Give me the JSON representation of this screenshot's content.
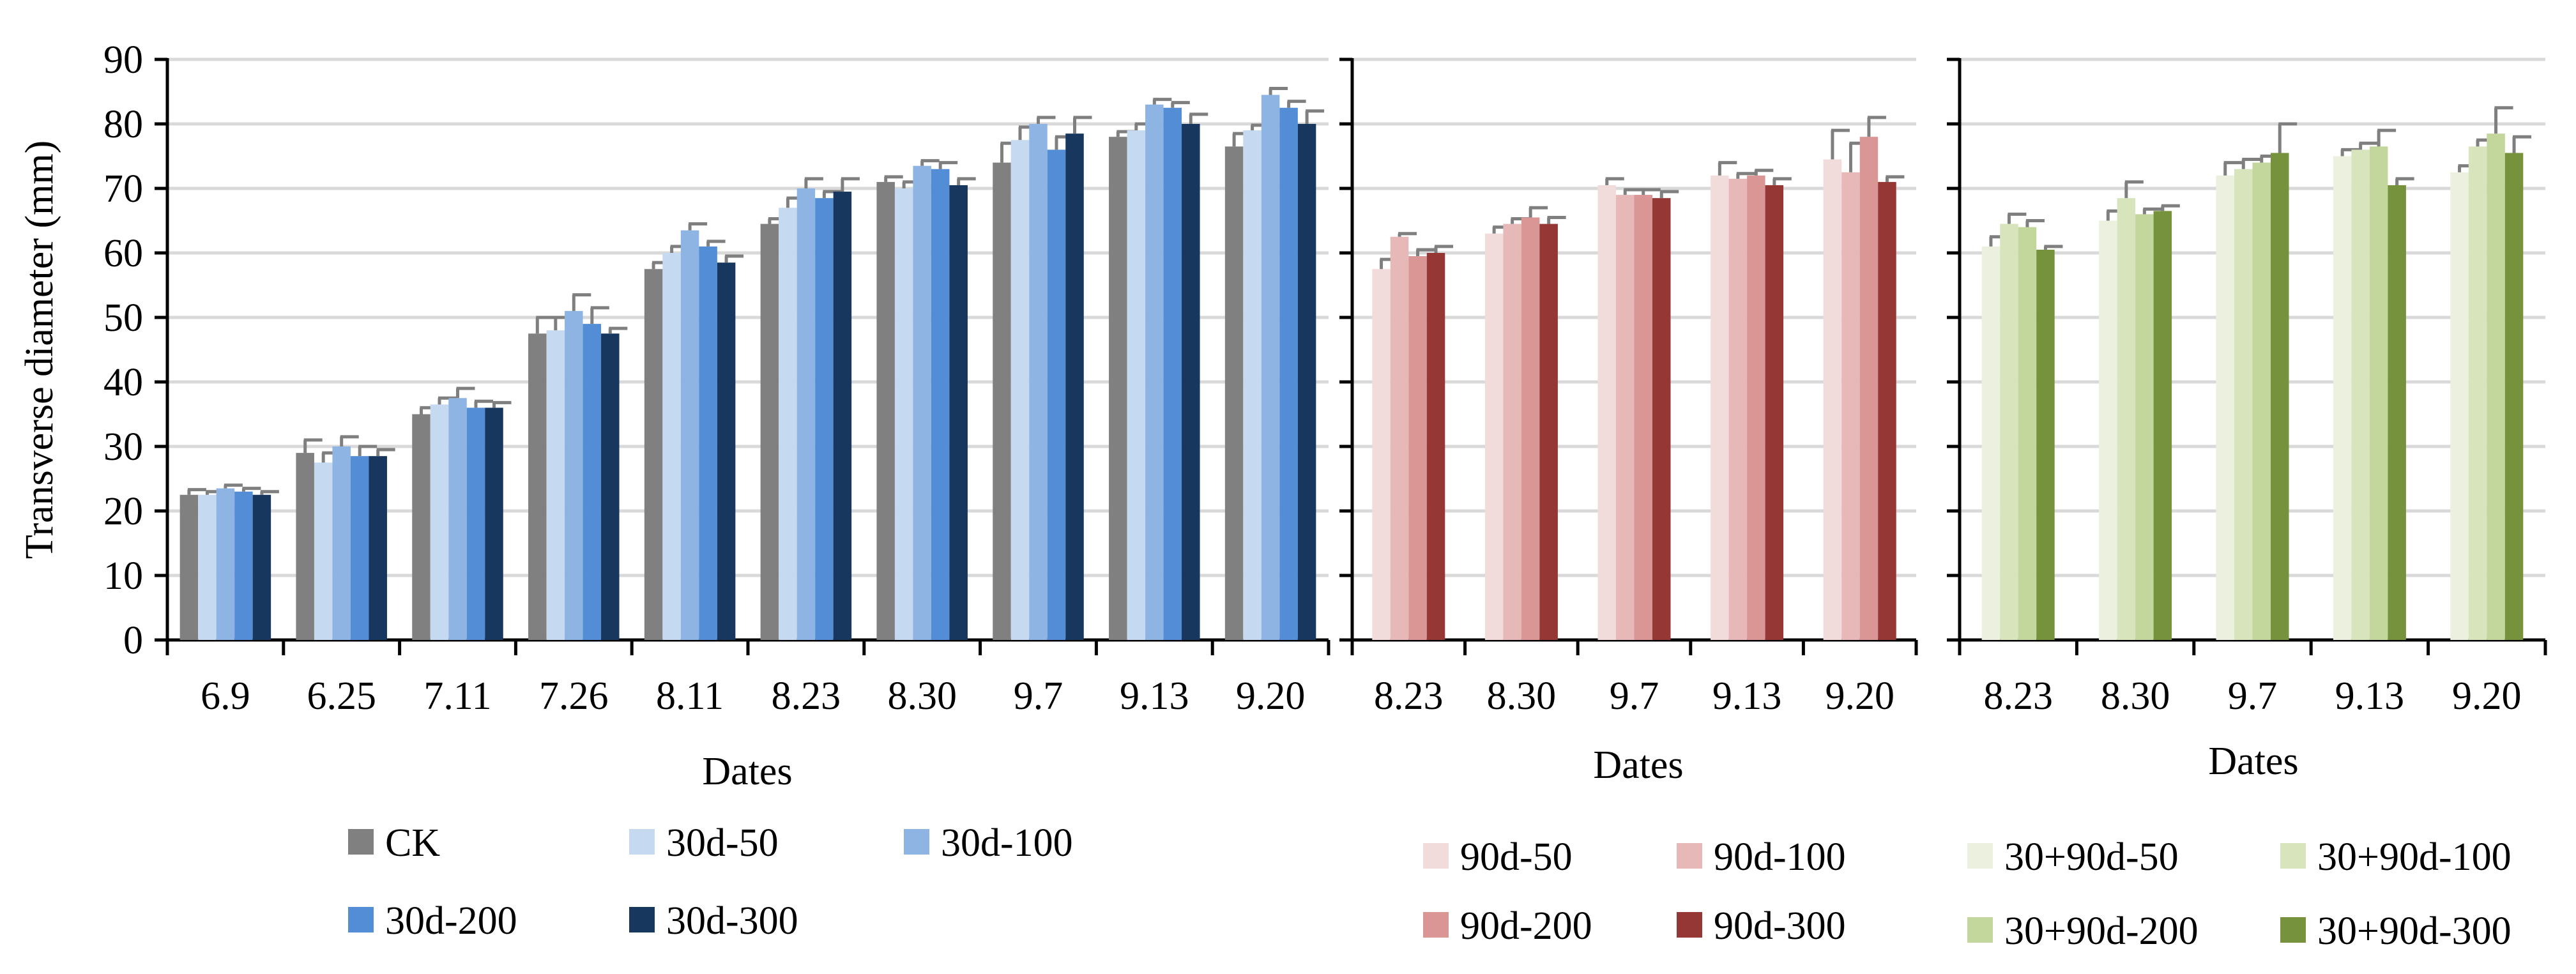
{
  "colors": {
    "grid": "#d9d9d9",
    "axis": "#000000",
    "errorbar": "#7f7f7f"
  },
  "chart_data": [
    {
      "type": "bar",
      "title": "",
      "xlabel": "Dates",
      "ylabel": "Transverse diameter (mm)",
      "ylim": [
        0,
        90
      ],
      "yticks": [
        0,
        10,
        20,
        30,
        40,
        50,
        60,
        70,
        80,
        90
      ],
      "grid": true,
      "legend_position": "bottom",
      "categories": [
        "6.9",
        "6.25",
        "7.11",
        "7.26",
        "8.11",
        "8.23",
        "8.30",
        "9.7",
        "9.13",
        "9.20"
      ],
      "series": [
        {
          "name": "CK",
          "color": "#808080",
          "values": [
            22.5,
            29.0,
            35.0,
            47.5,
            57.5,
            64.5,
            71.0,
            74.0,
            78.0,
            76.5
          ],
          "errors": [
            0.8,
            2.0,
            1.0,
            2.5,
            1.0,
            0.8,
            0.8,
            3.0,
            0.8,
            2.0
          ]
        },
        {
          "name": "30d-50",
          "color": "#c5d9f1",
          "values": [
            22.5,
            27.5,
            36.5,
            48.0,
            60.0,
            67.0,
            70.0,
            77.5,
            79.0,
            79.0
          ],
          "errors": [
            0.5,
            1.5,
            1.0,
            2.0,
            1.0,
            1.5,
            1.0,
            2.0,
            1.0,
            0.8
          ]
        },
        {
          "name": "30d-100",
          "color": "#8db4e2",
          "values": [
            23.5,
            30.0,
            37.5,
            51.0,
            63.5,
            70.0,
            73.5,
            80.0,
            83.0,
            84.5
          ],
          "errors": [
            0.5,
            1.5,
            1.5,
            2.5,
            1.0,
            1.5,
            0.8,
            1.0,
            0.8,
            1.0
          ]
        },
        {
          "name": "30d-200",
          "color": "#538dd5",
          "values": [
            23.0,
            28.5,
            36.0,
            49.0,
            61.0,
            68.5,
            73.0,
            76.0,
            82.5,
            82.5
          ],
          "errors": [
            0.5,
            1.5,
            1.0,
            2.5,
            0.8,
            1.0,
            1.0,
            2.0,
            0.8,
            1.0
          ]
        },
        {
          "name": "30d-300",
          "color": "#17375e",
          "values": [
            22.5,
            28.5,
            36.0,
            47.5,
            58.5,
            69.5,
            70.5,
            78.5,
            80.0,
            80.0
          ],
          "errors": [
            0.5,
            1.0,
            0.8,
            0.8,
            1.0,
            2.0,
            1.0,
            2.5,
            1.5,
            2.0
          ]
        }
      ]
    },
    {
      "type": "bar",
      "title": "",
      "xlabel": "Dates",
      "ylabel": "",
      "ylim": [
        0,
        90
      ],
      "grid": true,
      "legend_position": "bottom",
      "categories": [
        "8.23",
        "8.30",
        "9.7",
        "9.13",
        "9.20"
      ],
      "series": [
        {
          "name": "90d-50",
          "color": "#f2dcdb",
          "values": [
            57.5,
            63.0,
            70.5,
            72.0,
            74.5
          ],
          "errors": [
            1.5,
            1.0,
            1.0,
            2.0,
            4.5
          ]
        },
        {
          "name": "90d-100",
          "color": "#e6b9b8",
          "values": [
            62.5,
            64.5,
            69.0,
            71.5,
            72.5
          ],
          "errors": [
            0.5,
            0.8,
            0.8,
            0.8,
            4.5
          ]
        },
        {
          "name": "90d-200",
          "color": "#d99694",
          "values": [
            59.5,
            65.5,
            69.0,
            72.0,
            78.0
          ],
          "errors": [
            1.0,
            1.5,
            0.8,
            0.8,
            3.0
          ]
        },
        {
          "name": "90d-300",
          "color": "#953735",
          "values": [
            60.0,
            64.5,
            68.5,
            70.5,
            71.0
          ],
          "errors": [
            1.0,
            1.0,
            1.0,
            1.0,
            0.8
          ]
        }
      ]
    },
    {
      "type": "bar",
      "title": "",
      "xlabel": "Dates",
      "ylabel": "",
      "ylim": [
        0,
        90
      ],
      "grid": true,
      "legend_position": "bottom",
      "categories": [
        "8.23",
        "8.30",
        "9.7",
        "9.13",
        "9.20"
      ],
      "series": [
        {
          "name": "30+90d-50",
          "color": "#ebf1de",
          "values": [
            61.0,
            65.0,
            72.0,
            75.0,
            72.5
          ],
          "errors": [
            1.5,
            1.5,
            2.0,
            1.0,
            1.0
          ]
        },
        {
          "name": "30+90d-100",
          "color": "#d7e4bc",
          "values": [
            64.5,
            68.5,
            73.0,
            76.0,
            76.5
          ],
          "errors": [
            1.5,
            2.5,
            1.5,
            1.0,
            1.0
          ]
        },
        {
          "name": "30+90d-200",
          "color": "#c3d69b",
          "values": [
            64.0,
            66.0,
            74.0,
            76.5,
            78.5
          ],
          "errors": [
            1.0,
            0.8,
            1.0,
            2.5,
            4.0
          ]
        },
        {
          "name": "30+90d-300",
          "color": "#76923c",
          "values": [
            60.5,
            66.5,
            75.5,
            70.5,
            75.5
          ],
          "errors": [
            0.5,
            0.8,
            4.5,
            1.0,
            2.5
          ]
        }
      ]
    }
  ]
}
